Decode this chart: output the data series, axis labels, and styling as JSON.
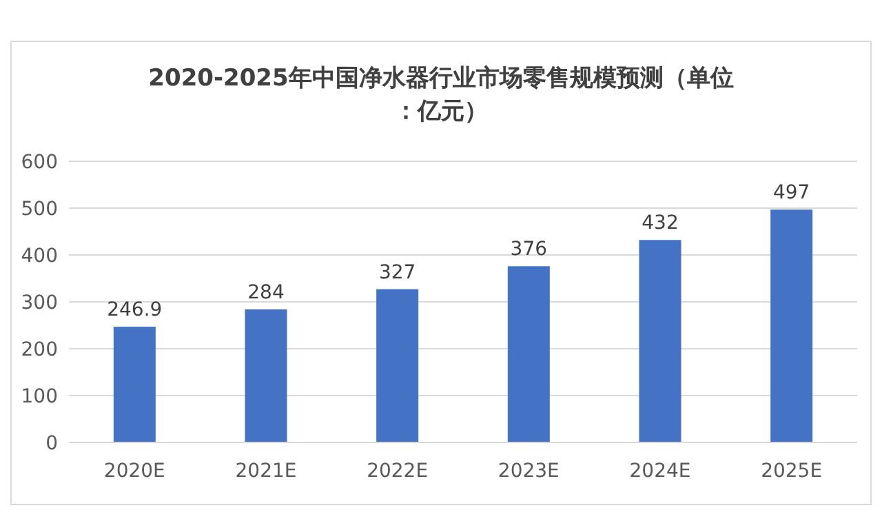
{
  "chart_data": {
    "type": "bar",
    "title": "2020-2025年中国净水器行业市场零售规模预测（单位：亿元）",
    "categories": [
      "2020E",
      "2021E",
      "2022E",
      "2023E",
      "2024E",
      "2025E"
    ],
    "values": [
      246.9,
      284,
      327,
      376,
      432,
      497
    ],
    "color": "#4472c4",
    "ylim": [
      0,
      600
    ],
    "yticks": [
      0,
      100,
      200,
      300,
      400,
      500,
      600
    ],
    "grid": "y",
    "data_labels": true
  }
}
